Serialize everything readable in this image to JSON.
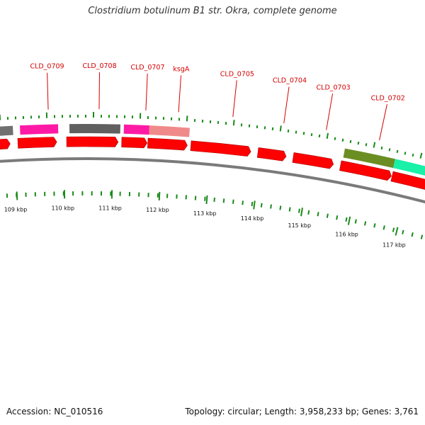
{
  "title": "Clostridium botulinum B1 str. Okra, complete genome",
  "footer": {
    "accession": "Accession: NC_010516",
    "summary": "Topology: circular; Length: 3,958,233 bp; Genes: 3,761"
  },
  "colors": {
    "cds": "#ff0000",
    "backbone": "#7a7a7a",
    "tick": "#1a8a1a",
    "label": "#d40000"
  },
  "gene_labels": [
    {
      "name": "CLD_0709",
      "x": 0.1
    },
    {
      "name": "CLD_0708",
      "x": 0.22
    },
    {
      "name": "CLD_0707",
      "x": 0.33
    },
    {
      "name": "ksgA",
      "x": 0.407
    },
    {
      "name": "CLD_0705",
      "x": 0.535
    },
    {
      "name": "CLD_0704",
      "x": 0.655
    },
    {
      "name": "CLD_0703",
      "x": 0.755
    },
    {
      "name": "CLD_0702",
      "x": 0.88
    }
  ],
  "scale_labels": [
    "109 kbp",
    "110 kbp",
    "111 kbp",
    "112 kbp",
    "113 kbp",
    "114 kbp",
    "115 kbp",
    "116 kbp",
    "117 kbp"
  ]
}
